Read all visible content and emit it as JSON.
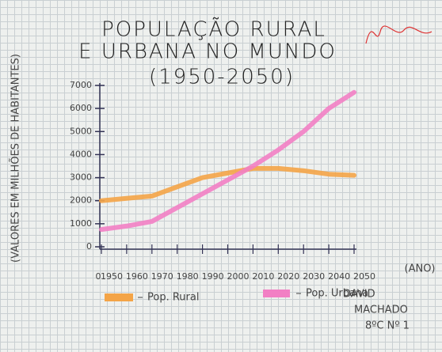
{
  "chart_data": {
    "type": "line",
    "title_lines": [
      "POPULAÇÃO RURAL",
      "E URBANA NO MUNDO",
      "(1950-2050)"
    ],
    "y_label": "(VALORES EM MILHÕES DE HABITANTES)",
    "x_label": "(ANO)",
    "x_origin_label": "0",
    "categories": [
      "1950",
      "1960",
      "1970",
      "1980",
      "1990",
      "2000",
      "2010",
      "2020",
      "2030",
      "2040",
      "2050"
    ],
    "series": [
      {
        "name": "Pop. Rural",
        "color": "#f4a447",
        "values": [
          2000,
          2100,
          2200,
          2600,
          3000,
          3200,
          3400,
          3400,
          3300,
          3150,
          3100
        ]
      },
      {
        "name": "Pop. Urbana",
        "color": "#f27fc4",
        "values": [
          750,
          900,
          1100,
          1700,
          2300,
          2900,
          3500,
          4200,
          5000,
          6000,
          6700
        ]
      }
    ],
    "ylim": [
      0,
      7000
    ],
    "yticks": [
      0,
      1000,
      2000,
      3000,
      4000,
      5000,
      6000,
      7000
    ],
    "author_lines": [
      "DAVID",
      "MACHADO",
      "8ºC Nº 1"
    ]
  }
}
